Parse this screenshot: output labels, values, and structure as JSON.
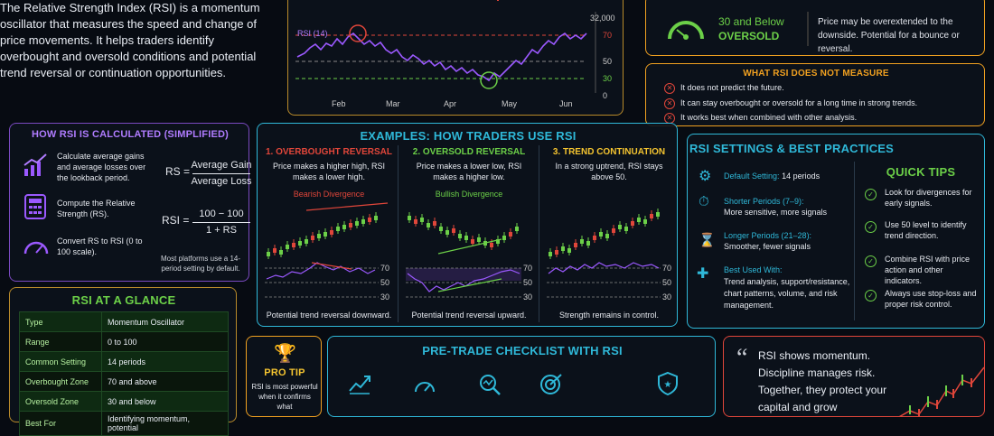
{
  "intro": {
    "text": "The Relative Strength Index (RSI) is a momentum oscillator that measures the speed and change of price movements. It helps traders identify overbought and oversold conditions and potential trend reversal or continuation opportunities."
  },
  "top_chart": {
    "rsi_label": "RSI (14)",
    "price_label": "32,000",
    "y_labels": [
      "70",
      "50",
      "30",
      "0"
    ],
    "months": [
      "Feb",
      "Mar",
      "Apr",
      "May",
      "Jun"
    ]
  },
  "oversold": {
    "title_top": "30 and Below",
    "title_bottom": "OVERSOLD",
    "text": "Price may be overextended to the downside. Potential for a bounce or reversal."
  },
  "not_measure": {
    "title": "WHAT RSI DOES NOT MEASURE",
    "items": [
      "It does not predict the future.",
      "It can stay overbought or oversold for a long time in strong trends.",
      "It works best when combined with other analysis."
    ]
  },
  "calc": {
    "title": "HOW RSI IS CALCULATED (SIMPLIFIED)",
    "steps": [
      "Calculate average gains and average losses over the lookback period.",
      "Compute the Relative Strength (RS).",
      "Convert RS to RSI (0 to 100 scale)."
    ],
    "rs_label": "RS =",
    "rs_num": "Average Gain",
    "rs_den": "Average Loss",
    "rsi_label": "RSI =",
    "rsi_num": "100 − 100",
    "rsi_den": "1 + RS",
    "note": "Most platforms use a 14-period setting by default."
  },
  "examples": {
    "title": "EXAMPLES: HOW TRADERS USE RSI",
    "cols": [
      {
        "title": "1. OVERBOUGHT REVERSAL",
        "desc": "Price makes a higher high, RSI makes a lower high.",
        "tag": "Bearish Divergence",
        "caption": "Potential trend reversal downward."
      },
      {
        "title": "2. OVERSOLD REVERSAL",
        "desc": "Price makes a lower low, RSI makes a higher low.",
        "tag": "Bullish Divergence",
        "caption": "Potential trend reversal upward."
      },
      {
        "title": "3. TREND CONTINUATION",
        "desc": "In a strong uptrend, RSI stays above 50.",
        "tag": "",
        "caption": "Strength remains in control."
      }
    ],
    "levels": [
      "70",
      "50",
      "30"
    ]
  },
  "settings": {
    "title": "RSI SETTINGS & BEST PRACTICES",
    "items": [
      {
        "head": "Default Setting:",
        "body": "14 periods"
      },
      {
        "head": "Shorter Periods (7–9):",
        "body": "More sensitive, more signals"
      },
      {
        "head": "Longer Periods (21–28):",
        "body": "Smoother, fewer signals"
      },
      {
        "head": "Best Used With:",
        "body": "Trend analysis, support/resistance, chart patterns, volume, and risk management."
      }
    ],
    "tips_title": "QUICK TIPS",
    "tips": [
      "Look for divergences for early signals.",
      "Use 50 level to identify trend direction.",
      "Combine RSI with price action and other indicators.",
      "Always use stop-loss and proper risk control."
    ]
  },
  "glance": {
    "title": "RSI AT A GLANCE",
    "rows": [
      [
        "Type",
        "Momentum Oscillator"
      ],
      [
        "Range",
        "0 to 100"
      ],
      [
        "Common Setting",
        "14 periods"
      ],
      [
        "Overbought Zone",
        "70 and above"
      ],
      [
        "Oversold Zone",
        "30 and below"
      ],
      [
        "Best For",
        "Identifying momentum, potential"
      ]
    ]
  },
  "protip": {
    "title": "PRO TIP",
    "text": "RSI is most powerful when it confirms what"
  },
  "checklist": {
    "title": "PRE-TRADE CHECKLIST WITH RSI"
  },
  "quote": {
    "text": "RSI shows momentum. Discipline manages risk. Together, they protect your capital and grow"
  },
  "colors": {
    "purple": "#9b59ff",
    "green": "#6cd048",
    "red": "#e0463a",
    "orange": "#f0a020",
    "cyan": "#2fb8d8",
    "yellow": "#f4c430"
  }
}
